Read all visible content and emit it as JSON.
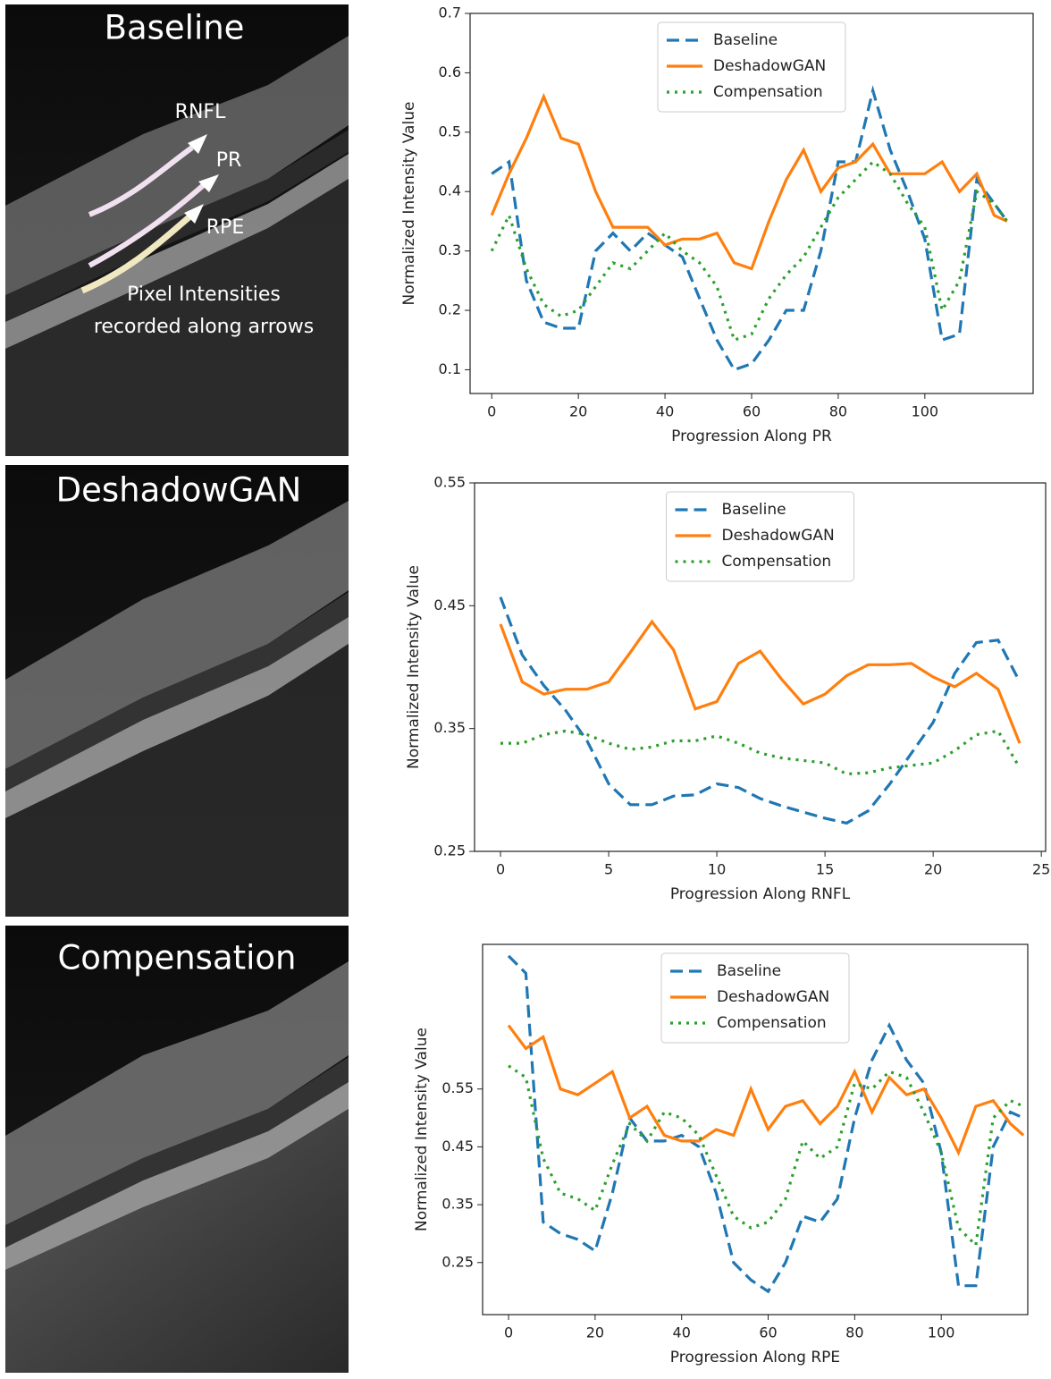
{
  "panels": [
    {
      "title": "Baseline",
      "labels": [
        "RNFL",
        "PR",
        "RPE"
      ],
      "note": [
        "Pixel Intensities",
        "recorded along arrows"
      ]
    },
    {
      "title": "DeshadowGAN"
    },
    {
      "title": "Compensation"
    }
  ],
  "chart_data": [
    {
      "type": "line",
      "xlabel": "Progression Along PR",
      "ylabel": "Normalized Intensity Value",
      "legend": "upper center",
      "xlim": [
        -5,
        125
      ],
      "ylim": [
        0.06,
        0.7
      ],
      "xticks": [
        0,
        20,
        40,
        60,
        80,
        100
      ],
      "yticks": [
        0.1,
        0.2,
        0.3,
        0.4,
        0.5,
        0.6,
        0.7
      ],
      "x": [
        0,
        4,
        8,
        12,
        16,
        20,
        24,
        28,
        32,
        36,
        40,
        44,
        48,
        52,
        56,
        60,
        64,
        68,
        72,
        76,
        80,
        84,
        88,
        92,
        96,
        100,
        104,
        108,
        112,
        116,
        119
      ],
      "series": [
        {
          "name": "Baseline",
          "color": "#1f77b4",
          "linestyle": "dashed",
          "values": [
            0.43,
            0.45,
            0.25,
            0.18,
            0.17,
            0.17,
            0.3,
            0.33,
            0.3,
            0.33,
            0.31,
            0.29,
            0.22,
            0.15,
            0.1,
            0.11,
            0.15,
            0.2,
            0.2,
            0.3,
            0.45,
            0.45,
            0.57,
            0.47,
            0.4,
            0.32,
            0.15,
            0.16,
            0.42,
            0.38,
            0.35
          ]
        },
        {
          "name": "DeshadowGAN",
          "color": "#ff7f0e",
          "linestyle": "solid",
          "values": [
            0.36,
            0.43,
            0.49,
            0.56,
            0.49,
            0.48,
            0.4,
            0.34,
            0.34,
            0.34,
            0.31,
            0.32,
            0.32,
            0.33,
            0.28,
            0.27,
            0.35,
            0.42,
            0.47,
            0.4,
            0.44,
            0.45,
            0.48,
            0.43,
            0.43,
            0.43,
            0.45,
            0.4,
            0.43,
            0.36,
            0.35
          ]
        },
        {
          "name": "Compensation",
          "color": "#2ca02c",
          "linestyle": "dotted",
          "values": [
            0.3,
            0.36,
            0.27,
            0.21,
            0.19,
            0.2,
            0.24,
            0.28,
            0.27,
            0.3,
            0.33,
            0.3,
            0.28,
            0.24,
            0.15,
            0.16,
            0.22,
            0.26,
            0.29,
            0.34,
            0.39,
            0.42,
            0.45,
            0.43,
            0.38,
            0.34,
            0.2,
            0.25,
            0.4,
            0.38,
            0.35
          ]
        }
      ]
    },
    {
      "type": "line",
      "xlabel": "Progression Along RNFL",
      "ylabel": "Normalized Intensity Value",
      "legend": "upper center",
      "xlim": [
        -1.2,
        25.2
      ],
      "ylim": [
        0.25,
        0.55
      ],
      "xticks": [
        0,
        5,
        10,
        15,
        20,
        25
      ],
      "yticks": [
        0.25,
        0.35,
        0.45,
        0.55
      ],
      "x": [
        0,
        1,
        2,
        3,
        4,
        5,
        6,
        7,
        8,
        9,
        10,
        11,
        12,
        13,
        14,
        15,
        16,
        17,
        18,
        19,
        20,
        21,
        22,
        23,
        24
      ],
      "series": [
        {
          "name": "Baseline",
          "color": "#1f77b4",
          "linestyle": "dashed",
          "values": [
            0.457,
            0.41,
            0.385,
            0.365,
            0.34,
            0.305,
            0.288,
            0.288,
            0.295,
            0.296,
            0.305,
            0.302,
            0.293,
            0.287,
            0.282,
            0.277,
            0.273,
            0.283,
            0.305,
            0.33,
            0.355,
            0.395,
            0.42,
            0.422,
            0.388
          ]
        },
        {
          "name": "DeshadowGAN",
          "color": "#ff7f0e",
          "linestyle": "solid",
          "values": [
            0.435,
            0.388,
            0.378,
            0.382,
            0.382,
            0.388,
            0.412,
            0.437,
            0.414,
            0.366,
            0.372,
            0.403,
            0.413,
            0.39,
            0.37,
            0.378,
            0.393,
            0.402,
            0.402,
            0.403,
            0.392,
            0.384,
            0.395,
            0.382,
            0.338
          ]
        },
        {
          "name": "Compensation",
          "color": "#2ca02c",
          "linestyle": "dotted",
          "values": [
            0.338,
            0.338,
            0.345,
            0.348,
            0.345,
            0.338,
            0.333,
            0.335,
            0.34,
            0.34,
            0.344,
            0.338,
            0.33,
            0.326,
            0.324,
            0.322,
            0.313,
            0.314,
            0.318,
            0.32,
            0.322,
            0.332,
            0.345,
            0.348,
            0.318
          ]
        }
      ]
    },
    {
      "type": "line",
      "xlabel": "Progression Along RPE",
      "ylabel": "Normalized Intensity Value",
      "legend": "upper center",
      "xlim": [
        -6,
        120
      ],
      "ylim": [
        0.16,
        0.8
      ],
      "xticks": [
        0,
        20,
        40,
        60,
        80,
        100
      ],
      "yticks": [
        0.25,
        0.35,
        0.45,
        0.55
      ],
      "x": [
        0,
        4,
        8,
        12,
        16,
        20,
        24,
        28,
        32,
        36,
        40,
        44,
        48,
        52,
        56,
        60,
        64,
        68,
        72,
        76,
        80,
        84,
        88,
        92,
        96,
        100,
        104,
        108,
        112,
        116,
        119
      ],
      "series": [
        {
          "name": "Baseline",
          "color": "#1f77b4",
          "linestyle": "dashed",
          "values": [
            0.78,
            0.75,
            0.32,
            0.3,
            0.29,
            0.27,
            0.37,
            0.5,
            0.46,
            0.46,
            0.47,
            0.45,
            0.37,
            0.25,
            0.22,
            0.2,
            0.25,
            0.33,
            0.32,
            0.36,
            0.5,
            0.6,
            0.66,
            0.6,
            0.56,
            0.44,
            0.21,
            0.21,
            0.45,
            0.51,
            0.5
          ]
        },
        {
          "name": "DeshadowGAN",
          "color": "#ff7f0e",
          "linestyle": "solid",
          "values": [
            0.66,
            0.62,
            0.64,
            0.55,
            0.54,
            0.56,
            0.58,
            0.5,
            0.52,
            0.47,
            0.46,
            0.46,
            0.48,
            0.47,
            0.55,
            0.48,
            0.52,
            0.53,
            0.49,
            0.52,
            0.58,
            0.51,
            0.57,
            0.54,
            0.55,
            0.5,
            0.44,
            0.52,
            0.53,
            0.49,
            0.47
          ]
        },
        {
          "name": "Compensation",
          "color": "#2ca02c",
          "linestyle": "dotted",
          "values": [
            0.59,
            0.57,
            0.43,
            0.37,
            0.36,
            0.34,
            0.42,
            0.49,
            0.46,
            0.51,
            0.5,
            0.47,
            0.4,
            0.33,
            0.31,
            0.32,
            0.36,
            0.46,
            0.43,
            0.45,
            0.56,
            0.55,
            0.58,
            0.57,
            0.51,
            0.44,
            0.31,
            0.28,
            0.5,
            0.53,
            0.52
          ]
        }
      ]
    }
  ]
}
